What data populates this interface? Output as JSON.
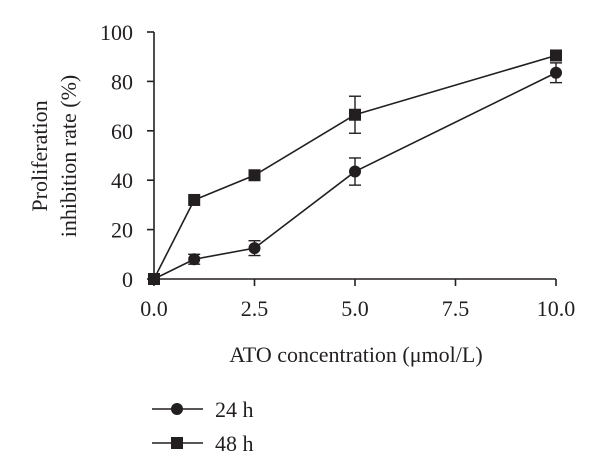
{
  "chart_data": {
    "type": "line",
    "title": "",
    "xlabel": "ATO concentration (μmol/L)",
    "ylabel_lines": [
      "Proliferation",
      "inhibition rate (%)"
    ],
    "xlim": [
      0,
      10
    ],
    "ylim": [
      0,
      100
    ],
    "x_ticks": [
      0,
      2.5,
      5,
      7.5,
      10
    ],
    "x_tick_labels": [
      "0.0",
      "2.5",
      "5.0",
      "7.5",
      "10.0"
    ],
    "y_ticks": [
      0,
      20,
      40,
      60,
      80,
      100
    ],
    "y_tick_labels": [
      "0",
      "20",
      "40",
      "60",
      "80",
      "100"
    ],
    "grid": false,
    "legend_position": "bottom-left, below plot",
    "series": [
      {
        "name": "24 h",
        "marker": "circle",
        "color": "#231f20",
        "x": [
          0,
          1,
          2.5,
          5,
          10
        ],
        "y": [
          0,
          8,
          12.5,
          43.5,
          83.5
        ],
        "err": [
          0,
          2,
          3,
          5.5,
          4
        ]
      },
      {
        "name": "48 h",
        "marker": "square",
        "color": "#231f20",
        "x": [
          0,
          1,
          2.5,
          5,
          10
        ],
        "y": [
          0,
          32,
          42,
          66.5,
          90.5
        ],
        "err": [
          0,
          0,
          0,
          7.5,
          0
        ]
      }
    ]
  }
}
